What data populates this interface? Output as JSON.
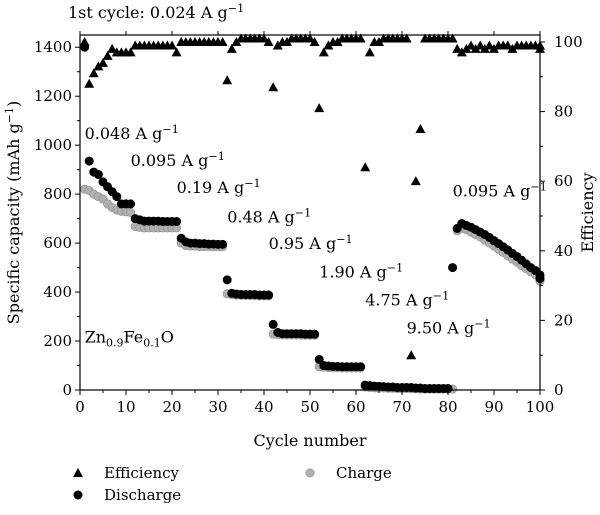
{
  "chart_data": {
    "type": "scatter",
    "xlabel": "Cycle number",
    "ylabel_left": "Specific capacity (mAh g⁻¹)",
    "ylabel_right": "Efficiency",
    "xlim": [
      0,
      100
    ],
    "ylim_left": [
      0,
      1450
    ],
    "ylim_right": [
      0,
      102
    ],
    "x_ticks": [
      0,
      10,
      20,
      30,
      40,
      50,
      60,
      70,
      80,
      90,
      100
    ],
    "y_left_ticks": [
      0,
      200,
      400,
      600,
      800,
      1000,
      1200,
      1400
    ],
    "y_right_ticks": [
      0,
      20,
      40,
      60,
      80,
      100
    ],
    "grid": false,
    "legend_position": "bottom",
    "inset_label": "Zn0.9Fe0.1O",
    "annotations": [
      {
        "text": "1st cycle: 0.024 A g⁻¹",
        "x": 0,
        "y": 1540
      },
      {
        "text": "0.048 A g⁻¹",
        "x": 1,
        "y": 1025
      },
      {
        "text": "0.095 A g⁻¹",
        "x": 11,
        "y": 915
      },
      {
        "text": "0.19 A g⁻¹",
        "x": 21,
        "y": 805
      },
      {
        "text": "0.48 A g⁻¹",
        "x": 32,
        "y": 685
      },
      {
        "text": "0.95 A g⁻¹",
        "x": 41,
        "y": 575
      },
      {
        "text": "1.90 A g⁻¹",
        "x": 52,
        "y": 460
      },
      {
        "text": "4.75 A g⁻¹",
        "x": 62,
        "y": 345
      },
      {
        "text": "9.50 A g⁻¹",
        "x": 71,
        "y": 230
      },
      {
        "text": "0.095 A g⁻¹",
        "x": 81,
        "y": 790
      }
    ],
    "series": [
      {
        "name": "Efficiency",
        "axis": "right",
        "marker": "triangle",
        "color": "#000000",
        "points": [
          [
            1,
            100
          ],
          [
            2,
            88
          ],
          [
            3,
            91
          ],
          [
            4,
            93
          ],
          [
            5,
            94
          ],
          [
            6,
            96
          ],
          [
            7,
            98
          ],
          [
            8,
            97
          ],
          [
            9,
            97
          ],
          [
            10,
            97
          ],
          [
            11,
            97
          ],
          [
            12,
            99
          ],
          [
            13,
            99
          ],
          [
            14,
            99
          ],
          [
            15,
            99
          ],
          [
            16,
            99
          ],
          [
            17,
            99
          ],
          [
            18,
            99
          ],
          [
            19,
            99
          ],
          [
            20,
            99
          ],
          [
            21,
            97
          ],
          [
            22,
            100
          ],
          [
            23,
            100
          ],
          [
            24,
            100
          ],
          [
            25,
            100
          ],
          [
            26,
            100
          ],
          [
            27,
            100
          ],
          [
            28,
            100
          ],
          [
            29,
            100
          ],
          [
            30,
            100
          ],
          [
            31,
            100
          ],
          [
            32,
            89
          ],
          [
            33,
            98
          ],
          [
            34,
            100
          ],
          [
            35,
            101
          ],
          [
            36,
            101
          ],
          [
            37,
            101
          ],
          [
            38,
            101
          ],
          [
            39,
            101
          ],
          [
            40,
            101
          ],
          [
            41,
            100
          ],
          [
            42,
            87
          ],
          [
            43,
            99
          ],
          [
            44,
            100
          ],
          [
            45,
            100
          ],
          [
            46,
            101
          ],
          [
            47,
            101
          ],
          [
            48,
            101
          ],
          [
            49,
            101
          ],
          [
            50,
            101
          ],
          [
            51,
            100
          ],
          [
            52,
            81
          ],
          [
            53,
            97
          ],
          [
            54,
            99
          ],
          [
            55,
            100
          ],
          [
            56,
            100
          ],
          [
            57,
            101
          ],
          [
            58,
            101
          ],
          [
            59,
            101
          ],
          [
            60,
            101
          ],
          [
            61,
            101
          ],
          [
            62,
            64
          ],
          [
            63,
            97
          ],
          [
            64,
            100
          ],
          [
            65,
            100
          ],
          [
            66,
            101
          ],
          [
            67,
            101
          ],
          [
            68,
            101
          ],
          [
            69,
            101
          ],
          [
            70,
            101
          ],
          [
            71,
            101
          ],
          [
            72,
            10
          ],
          [
            73,
            60
          ],
          [
            74,
            75
          ],
          [
            75,
            101
          ],
          [
            76,
            101
          ],
          [
            77,
            101
          ],
          [
            78,
            101
          ],
          [
            79,
            101
          ],
          [
            80,
            101
          ],
          [
            81,
            101
          ],
          [
            82,
            98
          ],
          [
            83,
            97
          ],
          [
            84,
            98
          ],
          [
            85,
            99
          ],
          [
            86,
            98
          ],
          [
            87,
            99
          ],
          [
            88,
            98
          ],
          [
            89,
            99
          ],
          [
            90,
            98
          ],
          [
            91,
            99
          ],
          [
            92,
            99
          ],
          [
            93,
            99
          ],
          [
            94,
            98
          ],
          [
            95,
            99
          ],
          [
            96,
            99
          ],
          [
            97,
            99
          ],
          [
            98,
            99
          ],
          [
            99,
            99
          ],
          [
            100,
            98
          ],
          [
            101,
            99
          ]
        ]
      },
      {
        "name": "Discharge",
        "axis": "left",
        "marker": "circle",
        "color": "#000000",
        "points": [
          [
            1,
            1400
          ],
          [
            2,
            935
          ],
          [
            3,
            890
          ],
          [
            4,
            880
          ],
          [
            5,
            850
          ],
          [
            6,
            830
          ],
          [
            7,
            810
          ],
          [
            8,
            790
          ],
          [
            9,
            760
          ],
          [
            10,
            760
          ],
          [
            11,
            760
          ],
          [
            12,
            700
          ],
          [
            13,
            695
          ],
          [
            14,
            690
          ],
          [
            15,
            690
          ],
          [
            16,
            690
          ],
          [
            17,
            690
          ],
          [
            18,
            688
          ],
          [
            19,
            688
          ],
          [
            20,
            688
          ],
          [
            21,
            688
          ],
          [
            22,
            620
          ],
          [
            23,
            605
          ],
          [
            24,
            600
          ],
          [
            25,
            600
          ],
          [
            26,
            598
          ],
          [
            27,
            598
          ],
          [
            28,
            596
          ],
          [
            29,
            596
          ],
          [
            30,
            595
          ],
          [
            31,
            595
          ],
          [
            32,
            450
          ],
          [
            33,
            395
          ],
          [
            34,
            392
          ],
          [
            35,
            390
          ],
          [
            36,
            390
          ],
          [
            37,
            390
          ],
          [
            38,
            390
          ],
          [
            39,
            388
          ],
          [
            40,
            388
          ],
          [
            41,
            388
          ],
          [
            42,
            268
          ],
          [
            43,
            235
          ],
          [
            44,
            230
          ],
          [
            45,
            230
          ],
          [
            46,
            230
          ],
          [
            47,
            230
          ],
          [
            48,
            230
          ],
          [
            49,
            228
          ],
          [
            50,
            228
          ],
          [
            51,
            228
          ],
          [
            52,
            125
          ],
          [
            53,
            100
          ],
          [
            54,
            98
          ],
          [
            55,
            96
          ],
          [
            56,
            96
          ],
          [
            57,
            95
          ],
          [
            58,
            95
          ],
          [
            59,
            95
          ],
          [
            60,
            95
          ],
          [
            61,
            95
          ],
          [
            62,
            20
          ],
          [
            63,
            18
          ],
          [
            64,
            16
          ],
          [
            65,
            15
          ],
          [
            66,
            14
          ],
          [
            67,
            12
          ],
          [
            68,
            12
          ],
          [
            69,
            10
          ],
          [
            70,
            10
          ],
          [
            71,
            10
          ],
          [
            72,
            10
          ],
          [
            73,
            8
          ],
          [
            74,
            8
          ],
          [
            75,
            6
          ],
          [
            76,
            6
          ],
          [
            77,
            6
          ],
          [
            78,
            6
          ],
          [
            79,
            6
          ],
          [
            80,
            6
          ],
          [
            81,
            500
          ],
          [
            82,
            660
          ],
          [
            83,
            680
          ],
          [
            84,
            672
          ],
          [
            85,
            665
          ],
          [
            86,
            655
          ],
          [
            87,
            645
          ],
          [
            88,
            635
          ],
          [
            89,
            623
          ],
          [
            90,
            610
          ],
          [
            91,
            598
          ],
          [
            92,
            585
          ],
          [
            93,
            572
          ],
          [
            94,
            558
          ],
          [
            95,
            545
          ],
          [
            96,
            530
          ],
          [
            97,
            515
          ],
          [
            98,
            500
          ],
          [
            99,
            488
          ],
          [
            100,
            470
          ],
          [
            101,
            455
          ]
        ]
      },
      {
        "name": "Charge",
        "axis": "left",
        "marker": "circle",
        "color": "#b0b0b0",
        "points": [
          [
            1,
            820
          ],
          [
            2,
            815
          ],
          [
            3,
            800
          ],
          [
            4,
            790
          ],
          [
            5,
            780
          ],
          [
            6,
            760
          ],
          [
            7,
            745
          ],
          [
            8,
            735
          ],
          [
            9,
            730
          ],
          [
            10,
            728
          ],
          [
            11,
            725
          ],
          [
            12,
            668
          ],
          [
            13,
            664
          ],
          [
            14,
            662
          ],
          [
            15,
            662
          ],
          [
            16,
            662
          ],
          [
            17,
            662
          ],
          [
            18,
            662
          ],
          [
            19,
            662
          ],
          [
            20,
            662
          ],
          [
            21,
            662
          ],
          [
            22,
            600
          ],
          [
            23,
            590
          ],
          [
            24,
            588
          ],
          [
            25,
            588
          ],
          [
            26,
            586
          ],
          [
            27,
            586
          ],
          [
            28,
            586
          ],
          [
            29,
            585
          ],
          [
            30,
            585
          ],
          [
            31,
            585
          ],
          [
            32,
            393
          ],
          [
            33,
            390
          ],
          [
            34,
            388
          ],
          [
            35,
            387
          ],
          [
            36,
            386
          ],
          [
            37,
            385
          ],
          [
            38,
            385
          ],
          [
            39,
            384
          ],
          [
            40,
            384
          ],
          [
            41,
            384
          ],
          [
            42,
            228
          ],
          [
            43,
            226
          ],
          [
            44,
            225
          ],
          [
            45,
            225
          ],
          [
            46,
            225
          ],
          [
            47,
            225
          ],
          [
            48,
            224
          ],
          [
            49,
            224
          ],
          [
            50,
            224
          ],
          [
            51,
            224
          ],
          [
            52,
            95
          ],
          [
            53,
            93
          ],
          [
            54,
            92
          ],
          [
            55,
            91
          ],
          [
            56,
            91
          ],
          [
            57,
            90
          ],
          [
            58,
            90
          ],
          [
            59,
            90
          ],
          [
            60,
            90
          ],
          [
            61,
            90
          ],
          [
            62,
            12
          ],
          [
            63,
            10
          ],
          [
            64,
            9
          ],
          [
            65,
            8
          ],
          [
            66,
            8
          ],
          [
            67,
            7
          ],
          [
            68,
            7
          ],
          [
            69,
            6
          ],
          [
            70,
            6
          ],
          [
            71,
            6
          ],
          [
            72,
            5
          ],
          [
            73,
            5
          ],
          [
            74,
            4
          ],
          [
            75,
            4
          ],
          [
            76,
            4
          ],
          [
            77,
            4
          ],
          [
            78,
            4
          ],
          [
            79,
            4
          ],
          [
            80,
            4
          ],
          [
            81,
            4
          ],
          [
            82,
            650
          ],
          [
            83,
            660
          ],
          [
            84,
            655
          ],
          [
            85,
            645
          ],
          [
            86,
            635
          ],
          [
            87,
            625
          ],
          [
            88,
            612
          ],
          [
            89,
            600
          ],
          [
            90,
            588
          ],
          [
            91,
            575
          ],
          [
            92,
            562
          ],
          [
            93,
            548
          ],
          [
            94,
            535
          ],
          [
            95,
            522
          ],
          [
            96,
            508
          ],
          [
            97,
            495
          ],
          [
            98,
            482
          ],
          [
            99,
            470
          ],
          [
            100,
            458
          ],
          [
            101,
            445
          ]
        ]
      }
    ]
  }
}
